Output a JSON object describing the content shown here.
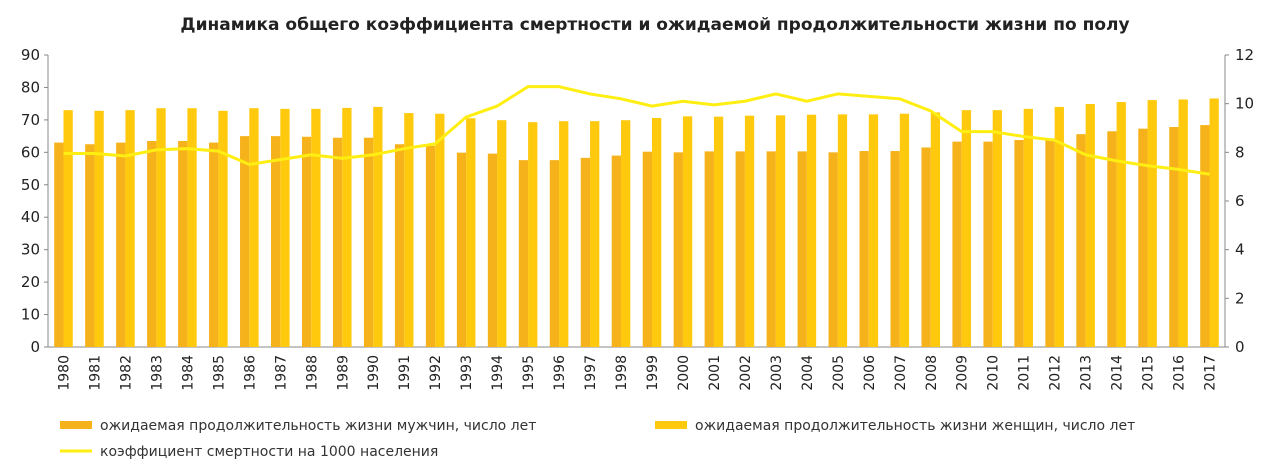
{
  "chart_data": {
    "type": "bar-line",
    "title": "Динамика общего коэффициента смертности и ожидаемой продолжительности жизни по полу",
    "categories": [
      "1980",
      "1981",
      "1982",
      "1983",
      "1984",
      "1985",
      "1986",
      "1987",
      "1988",
      "1989",
      "1990",
      "1991",
      "1992",
      "1993",
      "1994",
      "1995",
      "1996",
      "1997",
      "1998",
      "1999",
      "2000",
      "2001",
      "2002",
      "2003",
      "2004",
      "2005",
      "2006",
      "2007",
      "2008",
      "2009",
      "2010",
      "2011",
      "2012",
      "2013",
      "2014",
      "2015",
      "2016",
      "2017"
    ],
    "series": [
      {
        "name": "ожидаемая продолжительность жизни мужчин, число лет",
        "color": "#f6b21b",
        "type": "bar",
        "values": [
          63.0,
          62.5,
          63.0,
          63.5,
          63.5,
          63.0,
          65.0,
          65.0,
          64.8,
          64.5,
          64.5,
          62.5,
          62.0,
          59.9,
          59.6,
          57.6,
          57.6,
          58.3,
          59.0,
          60.2,
          60.0,
          60.3,
          60.3,
          60.3,
          60.3,
          60.0,
          60.4,
          60.4,
          61.5,
          63.3,
          63.3,
          63.8,
          64.3,
          65.6,
          66.5,
          67.3,
          67.8,
          68.4
        ]
      },
      {
        "name": "ожидаемая продолжительность жизни женщин, число лет",
        "color": "#ffc90e",
        "type": "bar",
        "values": [
          73.0,
          72.8,
          73.0,
          73.6,
          73.6,
          72.8,
          73.6,
          73.4,
          73.4,
          73.7,
          74.0,
          72.1,
          71.9,
          70.5,
          69.9,
          69.3,
          69.6,
          69.6,
          69.9,
          70.6,
          71.1,
          71.0,
          71.3,
          71.4,
          71.6,
          71.7,
          71.7,
          71.9,
          72.3,
          73.0,
          73.0,
          73.4,
          74.0,
          74.9,
          75.5,
          76.1,
          76.3,
          76.6
        ]
      },
      {
        "name": "коэффициент смертности на 1000 населения",
        "color": "#ffee11",
        "type": "line",
        "axis": "y2",
        "values": [
          7.95,
          7.95,
          7.85,
          8.1,
          8.15,
          8.05,
          7.5,
          7.7,
          7.9,
          7.75,
          7.9,
          8.15,
          8.35,
          9.45,
          9.9,
          10.7,
          10.7,
          10.4,
          10.2,
          9.9,
          10.1,
          9.95,
          10.1,
          10.4,
          10.1,
          10.4,
          10.3,
          10.2,
          9.7,
          8.85,
          8.85,
          8.65,
          8.5,
          7.9,
          7.65,
          7.45,
          7.3,
          7.1
        ]
      }
    ],
    "ylim": [
      0,
      90
    ],
    "yticks": [
      0,
      10,
      20,
      30,
      40,
      50,
      60,
      70,
      80,
      90
    ],
    "y2lim": [
      0,
      12
    ],
    "y2ticks": [
      0,
      2,
      4,
      6,
      8,
      10,
      12
    ]
  }
}
